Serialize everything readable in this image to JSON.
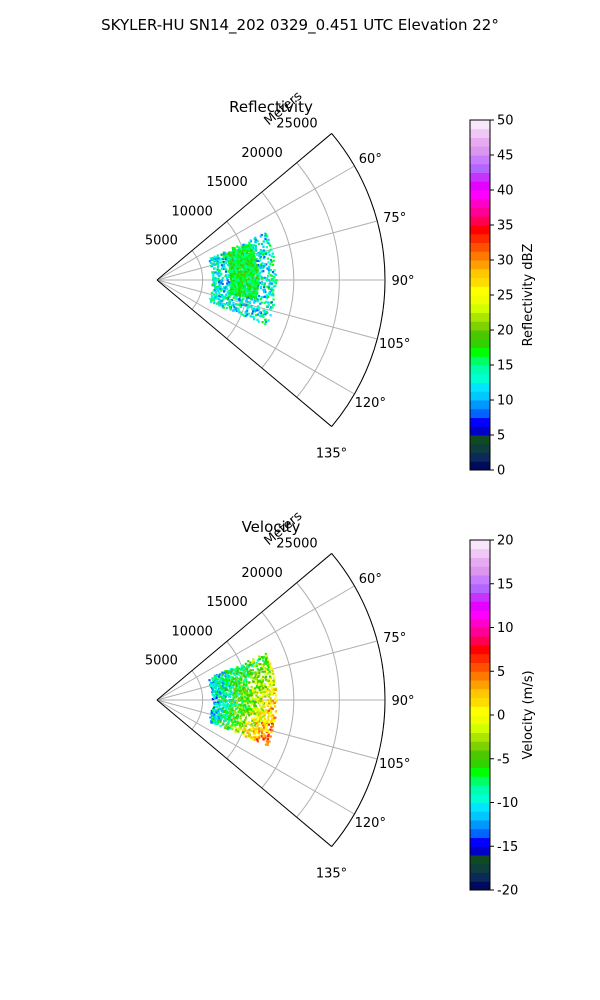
{
  "figure": {
    "title": "SKYLER-HU  SN14_202  0329_0.451 UTC Elevation 22°"
  },
  "chart_data": [
    {
      "type": "heatmap",
      "title": "Reflectivity",
      "projection": "polar-sector",
      "radial_label": "Meters",
      "radial_ticks": [
        5000,
        10000,
        15000,
        20000,
        25000
      ],
      "radial_tick_labels": [
        "5000",
        "10000",
        "15000",
        "20000",
        "25000"
      ],
      "r_max": 25000,
      "theta_range_deg": [
        50,
        130
      ],
      "angle_ticks_deg": [
        60,
        75,
        90,
        105,
        120,
        135
      ],
      "angle_tick_labels": [
        "60°",
        "75°",
        "90°",
        "105°",
        "120°",
        "135°"
      ],
      "grid": true,
      "colorbar": {
        "label": "Reflectivity dBZ",
        "range": [
          0,
          50
        ],
        "ticks": [
          0,
          5,
          10,
          15,
          20,
          25,
          30,
          35,
          40,
          45,
          50
        ],
        "tick_labels": [
          "0",
          "5",
          "10",
          "15",
          "20",
          "25",
          "30",
          "35",
          "40",
          "45",
          "50"
        ]
      },
      "echo_regions": [
        {
          "r": [
            6000,
            13000
          ],
          "theta_deg": [
            66,
            112
          ],
          "value_range": [
            8,
            17
          ]
        },
        {
          "r": [
            8000,
            11000
          ],
          "theta_deg": [
            68,
            100
          ],
          "value_range": [
            14,
            19
          ]
        }
      ]
    },
    {
      "type": "heatmap",
      "title": "Velocity",
      "projection": "polar-sector",
      "radial_label": "Meters",
      "radial_ticks": [
        5000,
        10000,
        15000,
        20000,
        25000
      ],
      "radial_tick_labels": [
        "5000",
        "10000",
        "15000",
        "20000",
        "25000"
      ],
      "r_max": 25000,
      "theta_range_deg": [
        50,
        130
      ],
      "angle_ticks_deg": [
        60,
        75,
        90,
        105,
        120,
        135
      ],
      "angle_tick_labels": [
        "60°",
        "75°",
        "90°",
        "105°",
        "120°",
        "135°"
      ],
      "grid": true,
      "colorbar": {
        "label": "Velocity (m/s)",
        "range": [
          -20,
          20
        ],
        "ticks": [
          -20,
          -15,
          -10,
          -5,
          0,
          5,
          10,
          15,
          20
        ],
        "tick_labels": [
          "-20",
          "-15",
          "-10",
          "-5",
          "0",
          "5",
          "10",
          "15",
          "20"
        ]
      },
      "echo_regions": [
        {
          "r": [
            6000,
            13000
          ],
          "theta_deg": [
            66,
            112
          ],
          "value_range": [
            -12,
            15
          ]
        }
      ]
    }
  ],
  "colors": {
    "grid": "#b0b0b0",
    "frame": "#000000",
    "reflectivity_scale": [
      "#000a5a",
      "#0a2a5a",
      "#0f3d3d",
      "#104a20",
      "#0000c8",
      "#0000ff",
      "#0064ff",
      "#0096ff",
      "#00c8ff",
      "#00e6ff",
      "#00ffd2",
      "#00ffaa",
      "#00ff64",
      "#00ff00",
      "#32d200",
      "#4bc800",
      "#7fd200",
      "#aae600",
      "#d2ff00",
      "#f0ff00",
      "#ffff00",
      "#ffdc00",
      "#ffc800",
      "#ffa000",
      "#ff7800",
      "#ff5000",
      "#ff2800",
      "#ff0000",
      "#ff0050",
      "#ff0096",
      "#ff00c8",
      "#ff00ff",
      "#e600ff",
      "#c832ff",
      "#b464ff",
      "#c87dff",
      "#dc96f0",
      "#e6aaf0",
      "#f0c8f5",
      "#f8e6fa"
    ],
    "velocity_scale": [
      "#000a5a",
      "#0a2a5a",
      "#0f3d3d",
      "#104a20",
      "#0000c8",
      "#0000ff",
      "#0064ff",
      "#0096ff",
      "#00c8ff",
      "#00e6ff",
      "#00ffd2",
      "#00ffaa",
      "#00ff64",
      "#00ff00",
      "#32d200",
      "#4bc800",
      "#7fd200",
      "#aae600",
      "#d2ff00",
      "#f0ff00",
      "#ffff00",
      "#ffdc00",
      "#ffc800",
      "#ffa000",
      "#ff7800",
      "#ff5000",
      "#ff2800",
      "#ff0000",
      "#ff0050",
      "#ff0096",
      "#ff00c8",
      "#ff00ff",
      "#e600ff",
      "#c832ff",
      "#b464ff",
      "#c87dff",
      "#dc96f0",
      "#e6aaf0",
      "#f0c8f5",
      "#f8e6fa"
    ]
  }
}
